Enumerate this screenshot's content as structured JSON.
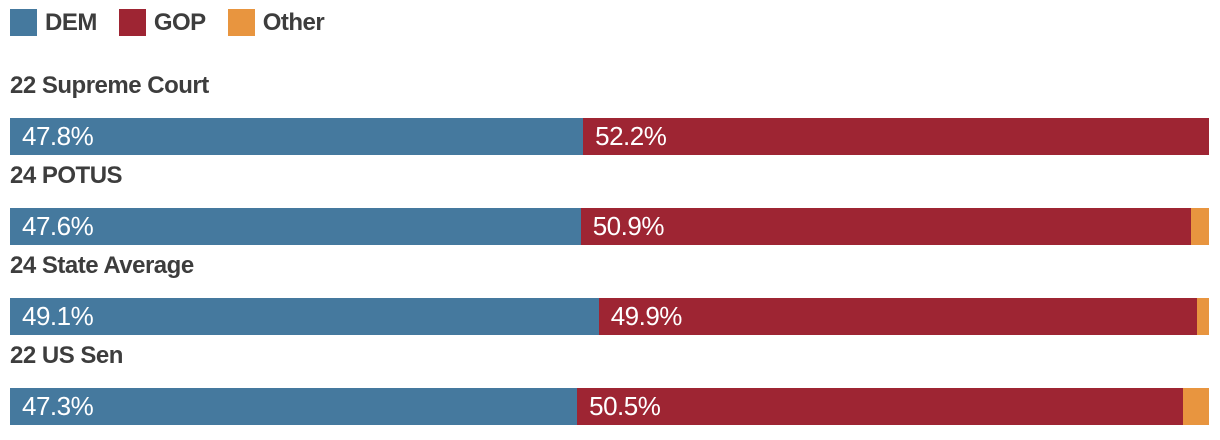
{
  "colors": {
    "dem": "#45799E",
    "gop": "#9E2533",
    "other": "#E8953F",
    "title_text": "#3D3D3D",
    "bar_label_text": "#FFFFFF"
  },
  "legend": {
    "items": [
      {
        "label": "DEM",
        "color_key": "dem"
      },
      {
        "label": "GOP",
        "color_key": "gop"
      },
      {
        "label": "Other",
        "color_key": "other"
      }
    ]
  },
  "rows": [
    {
      "title": "22 Supreme Court",
      "dem_pct": 47.8,
      "gop_pct": 52.2,
      "other_pct": 0,
      "dem_label": "47.8%",
      "gop_label": "52.2%"
    },
    {
      "title": "24 POTUS",
      "dem_pct": 47.6,
      "gop_pct": 50.9,
      "other_pct": 1.5,
      "dem_label": "47.6%",
      "gop_label": "50.9%"
    },
    {
      "title": "24 State Average",
      "dem_pct": 49.1,
      "gop_pct": 49.9,
      "other_pct": 1.0,
      "dem_label": "49.1%",
      "gop_label": "49.9%"
    },
    {
      "title": "22 US Sen",
      "dem_pct": 47.3,
      "gop_pct": 50.5,
      "other_pct": 2.2,
      "dem_label": "47.3%",
      "gop_label": "50.5%"
    }
  ],
  "chart_data": {
    "type": "bar",
    "orientation": "horizontal",
    "stacked": true,
    "categories": [
      "22 Supreme Court",
      "24 POTUS",
      "24 State Average",
      "22 US Sen"
    ],
    "series": [
      {
        "name": "DEM",
        "color": "#45799E",
        "values": [
          47.8,
          47.6,
          49.1,
          47.3
        ]
      },
      {
        "name": "GOP",
        "color": "#9E2533",
        "values": [
          52.2,
          50.9,
          49.9,
          50.5
        ]
      },
      {
        "name": "Other",
        "color": "#E8953F",
        "values": [
          0,
          1.5,
          1.0,
          2.2
        ]
      }
    ],
    "title": "",
    "xlabel": "",
    "ylabel": "",
    "xlim": [
      0,
      100
    ],
    "value_suffix": "%",
    "legend_position": "top-left",
    "grid": false,
    "data_labels": "inside-start, white"
  }
}
